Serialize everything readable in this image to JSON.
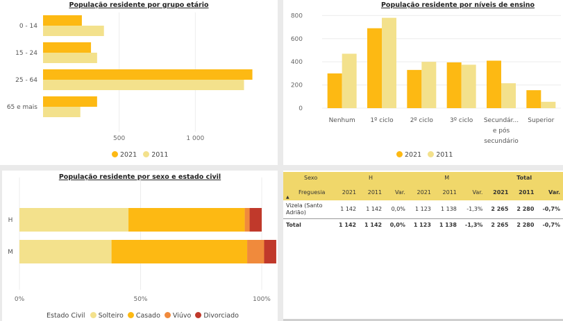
{
  "chart_data": [
    {
      "type": "bar",
      "orientation": "horizontal",
      "title": "População residente por grupo etário",
      "categories": [
        "0 - 14",
        "15 - 24",
        "25 - 64",
        "65 e mais"
      ],
      "series": [
        {
          "name": "2021",
          "color": "#fdb913",
          "values": [
            255,
            315,
            1375,
            355
          ]
        },
        {
          "name": "2011",
          "color": "#f3e18c",
          "values": [
            400,
            355,
            1320,
            245
          ]
        }
      ],
      "xlim": [
        0,
        1450
      ],
      "x_ticks": [
        500,
        1000
      ],
      "x_tick_labels": [
        "500",
        "1 000"
      ],
      "grid": true,
      "legend_position": "bottom"
    },
    {
      "type": "bar",
      "title": "População residente por níveis de ensino",
      "categories": [
        "Nenhum",
        "1º ciclo",
        "2º ciclo",
        "3º ciclo",
        "Secundár... e pós secundário",
        "Superior"
      ],
      "category_lines": [
        [
          "Nenhum"
        ],
        [
          "1º ciclo"
        ],
        [
          "2º ciclo"
        ],
        [
          "3º ciclo"
        ],
        [
          "Secundár...",
          "e pós",
          "secundário"
        ],
        [
          "Superior"
        ]
      ],
      "series": [
        {
          "name": "2021",
          "color": "#fdb913",
          "values": [
            300,
            690,
            330,
            395,
            410,
            155
          ]
        },
        {
          "name": "2011",
          "color": "#f3e18c",
          "values": [
            470,
            780,
            400,
            375,
            215,
            55
          ]
        }
      ],
      "ylim": [
        0,
        850
      ],
      "y_ticks": [
        0,
        200,
        400,
        600,
        800
      ],
      "grid": true,
      "legend_position": "bottom"
    },
    {
      "type": "bar",
      "orientation": "horizontal",
      "stacked": "percent",
      "title": "População residente por sexo e estado civil",
      "categories": [
        "H",
        "M"
      ],
      "legend_title": "Estado Civil",
      "series": [
        {
          "name": "Solteiro",
          "color": "#f3e18c",
          "values": [
            45,
            38
          ]
        },
        {
          "name": "Casado",
          "color": "#fdb913",
          "values": [
            48,
            56
          ]
        },
        {
          "name": "Viúvo",
          "color": "#f08a3c",
          "values": [
            2,
            7
          ]
        },
        {
          "name": "Divorciado",
          "color": "#c0392b",
          "values": [
            5,
            5
          ]
        }
      ],
      "xlim": [
        0,
        100
      ],
      "x_ticks": [
        0,
        50,
        100
      ],
      "x_tick_labels": [
        "0%",
        "50%",
        "100%"
      ],
      "grid": true,
      "legend_position": "bottom"
    },
    {
      "type": "table",
      "header_row1": {
        "label": "Sexo",
        "groups": [
          "H",
          "M",
          "Total"
        ]
      },
      "header_row2": {
        "label": "Freguesia",
        "columns": [
          "2021",
          "2011",
          "Var.",
          "2021",
          "2011",
          "Var.",
          "2021",
          "2011",
          "Var."
        ]
      },
      "rows": [
        {
          "label_lines": [
            "Vizela (Santo",
            "Adrião)"
          ],
          "cells": [
            "1 142",
            "1 142",
            "0,0%",
            "1 123",
            "1 138",
            "-1,3%",
            "2 265",
            "2 280",
            "-0,7%"
          ]
        }
      ],
      "total": {
        "label": "Total",
        "cells": [
          "1 142",
          "1 142",
          "0,0%",
          "1 123",
          "1 138",
          "-1,3%",
          "2 265",
          "2 280",
          "-0,7%"
        ]
      }
    }
  ]
}
